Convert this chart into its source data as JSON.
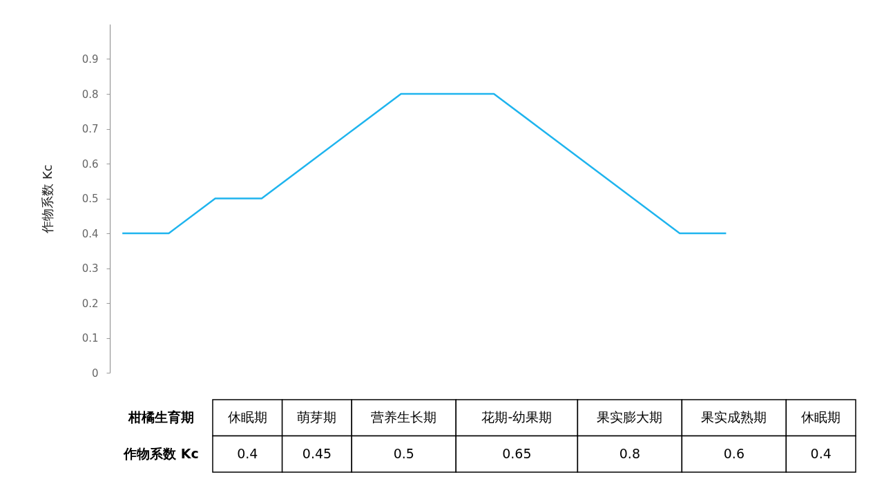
{
  "chart_data": [
    {
      "type": "line",
      "ylabel": "作物系数 Kc",
      "categories": [
        null,
        null,
        null,
        null,
        null,
        null,
        null,
        null,
        null,
        null,
        null,
        null,
        null,
        null
      ],
      "series": [
        {
          "color": "#1eb4ee",
          "values": [
            0.4,
            0.4,
            0.5,
            0.5,
            0.6,
            0.7,
            0.8,
            0.8,
            0.8,
            0.7,
            0.6,
            0.5,
            0.4,
            0.4
          ]
        }
      ],
      "ylim": [
        0,
        1
      ],
      "yticks": [
        0,
        0.1,
        0.2,
        0.3,
        0.4,
        0.5,
        0.6,
        0.7,
        0.8,
        0.9
      ],
      "grid": false,
      "marker": "none",
      "line_style": "solid"
    },
    {
      "type": "other",
      "categories": [
        "休眠期",
        "萌芽期",
        "营养生长期",
        "花期-幼果期",
        "果实膨大期",
        "果实成熟期",
        "休眠期"
      ],
      "values": [
        0.4,
        0.45,
        0.5,
        0.65,
        0.8,
        0.6,
        0.4
      ],
      "data_labels": true,
      "annotations": [
        "柑橘生育期",
        "作物系数 Kc"
      ]
    }
  ]
}
